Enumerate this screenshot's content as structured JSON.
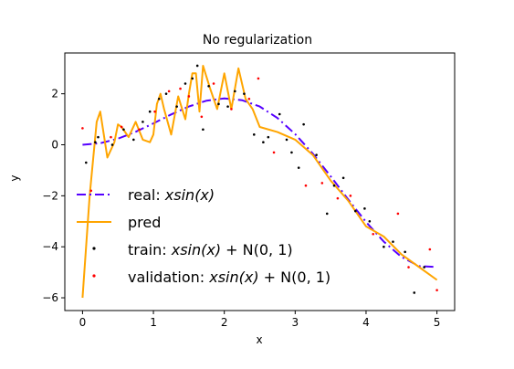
{
  "chart_data": {
    "type": "line",
    "title": "No regularization",
    "xlabel": "x",
    "ylabel": "y",
    "xlim": [
      -0.25,
      5.25
    ],
    "ylim": [
      -6.5,
      3.6
    ],
    "x_ticks": [
      0,
      1,
      2,
      3,
      4,
      5
    ],
    "y_ticks": [
      -6,
      -4,
      -2,
      0,
      2
    ],
    "legend_position": "lower-left",
    "colors": {
      "real": "#5500ff",
      "pred": "#ffa500",
      "train": "#000000",
      "validation": "#ff0000"
    },
    "series": [
      {
        "name": "real: xsin(x)",
        "style": "dashdot",
        "x": [
          0,
          0.25,
          0.5,
          0.75,
          1,
          1.25,
          1.5,
          1.75,
          2,
          2.25,
          2.5,
          2.75,
          3,
          3.25,
          3.5,
          3.75,
          4,
          4.25,
          4.5,
          4.75,
          5
        ],
        "y": [
          0,
          0.06,
          0.24,
          0.51,
          0.84,
          1.19,
          1.5,
          1.73,
          1.82,
          1.75,
          1.5,
          1.05,
          0.42,
          -0.35,
          -1.23,
          -2.15,
          -3.03,
          -3.8,
          -4.4,
          -4.76,
          -4.79
        ]
      },
      {
        "name": "pred",
        "style": "solid",
        "x": [
          0,
          0.1,
          0.2,
          0.25,
          0.3,
          0.35,
          0.45,
          0.5,
          0.55,
          0.65,
          0.75,
          0.85,
          0.95,
          1.0,
          1.05,
          1.1,
          1.15,
          1.25,
          1.35,
          1.45,
          1.5,
          1.55,
          1.6,
          1.65,
          1.7,
          1.8,
          1.9,
          2.0,
          2.1,
          2.2,
          2.3,
          2.4,
          2.5,
          2.75,
          3.0,
          3.25,
          3.5,
          3.75,
          4.0,
          4.25,
          4.5,
          4.75,
          5.0
        ],
        "y": [
          -6.0,
          -2.0,
          0.9,
          1.3,
          0.4,
          -0.5,
          0.1,
          0.8,
          0.7,
          0.3,
          0.9,
          0.2,
          0.1,
          0.4,
          1.6,
          2.0,
          1.4,
          0.4,
          1.9,
          1.0,
          2.0,
          2.8,
          2.8,
          1.3,
          3.1,
          2.2,
          1.4,
          2.8,
          1.4,
          3.0,
          1.8,
          1.4,
          0.7,
          0.5,
          0.2,
          -0.4,
          -1.4,
          -2.2,
          -3.2,
          -3.6,
          -4.3,
          -4.8,
          -5.3
        ]
      },
      {
        "name": "train: xsin(x) + N(0, 1)",
        "style": "points",
        "x": [
          0.05,
          0.18,
          0.22,
          0.42,
          0.58,
          0.72,
          0.85,
          0.95,
          1.08,
          1.18,
          1.33,
          1.45,
          1.55,
          1.62,
          1.7,
          1.78,
          1.92,
          2.05,
          2.15,
          2.28,
          2.42,
          2.55,
          2.62,
          2.78,
          2.88,
          2.95,
          3.05,
          3.12,
          3.3,
          3.45,
          3.55,
          3.68,
          3.85,
          3.98,
          4.05,
          4.25,
          4.38,
          4.55,
          4.68,
          4.82
        ],
        "y": [
          -0.7,
          0.1,
          0.3,
          0.0,
          0.6,
          0.2,
          0.9,
          1.3,
          1.8,
          2.0,
          1.5,
          2.4,
          2.6,
          3.1,
          0.6,
          2.3,
          1.6,
          1.5,
          2.1,
          2.0,
          0.4,
          0.1,
          0.3,
          1.2,
          0.2,
          -0.3,
          -0.9,
          0.8,
          -0.4,
          -2.7,
          -1.6,
          -1.3,
          -2.6,
          -2.5,
          -3.0,
          -4.0,
          -3.8,
          -4.2,
          -5.8,
          -4.8
        ]
      },
      {
        "name": "validation: xsin(x) + N(0, 1)",
        "style": "points",
        "x": [
          0.0,
          0.12,
          0.4,
          0.55,
          0.8,
          1.02,
          1.22,
          1.38,
          1.5,
          1.68,
          1.85,
          2.1,
          2.35,
          2.48,
          2.7,
          3.15,
          3.38,
          3.6,
          3.78,
          4.1,
          4.45,
          4.6,
          4.9,
          5.0
        ],
        "y": [
          0.65,
          -1.8,
          0.3,
          0.7,
          0.6,
          1.3,
          2.1,
          2.2,
          1.9,
          1.1,
          2.4,
          1.4,
          1.8,
          2.6,
          -0.3,
          -1.6,
          -1.5,
          -2.1,
          -2.0,
          -3.5,
          -2.7,
          -4.8,
          -4.1,
          -5.7
        ]
      }
    ]
  },
  "legend": [
    {
      "prefix": "real: ",
      "formula": "xsin(x)",
      "suffix": ""
    },
    {
      "prefix": "pred",
      "formula": "",
      "suffix": ""
    },
    {
      "prefix": "train: ",
      "formula": "xsin(x)",
      "suffix": " + N(0, 1)"
    },
    {
      "prefix": "validation: ",
      "formula": "xsin(x)",
      "suffix": " + N(0, 1)"
    }
  ]
}
